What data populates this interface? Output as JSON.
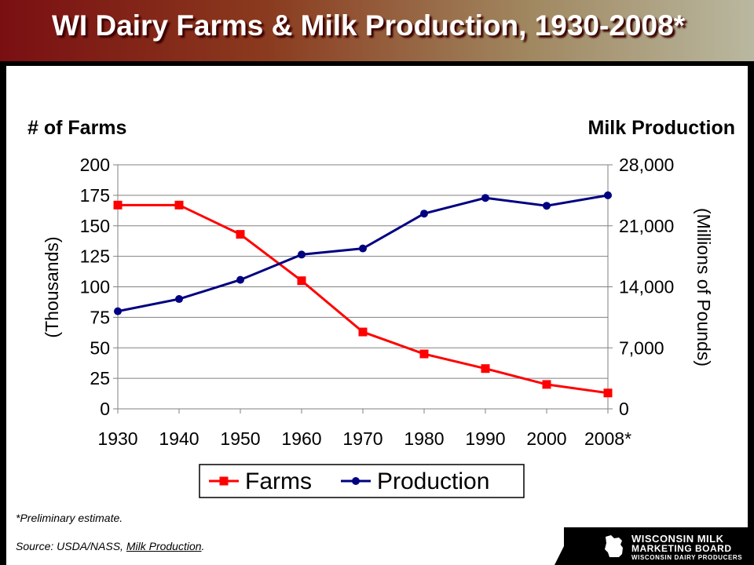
{
  "title": "WI Dairy Farms & Milk Production, 1930-2008*",
  "footnote": "*Preliminary estimate.",
  "source_prefix": "Source:  USDA/NASS, ",
  "source_link": "Milk Production",
  "source_suffix": ".",
  "logo": {
    "line1": "Wisconsin Milk",
    "line2": "Marketing Board",
    "line3": "Wisconsin Dairy Producers"
  },
  "colors": {
    "farms": "#ff0000",
    "production": "#000080",
    "grid": "#808080"
  },
  "chart_data": {
    "type": "line",
    "left_axis_header": "# of Farms",
    "right_axis_header": "Milk Production",
    "ylabel": "(Thousands)",
    "y2label": "(Millions of Pounds)",
    "categories": [
      "1930",
      "1940",
      "1950",
      "1960",
      "1970",
      "1980",
      "1990",
      "2000",
      "2008*"
    ],
    "ylim": [
      0,
      200
    ],
    "yticks": [
      "0",
      "25",
      "50",
      "75",
      "100",
      "125",
      "150",
      "175",
      "200"
    ],
    "y2lim": [
      0,
      28000
    ],
    "y2ticks": [
      "0",
      "7,000",
      "14,000",
      "21,000",
      "28,000"
    ],
    "grid": true,
    "legend_position": "bottom",
    "series": [
      {
        "name": "Farms",
        "axis": "left",
        "marker": "square",
        "values": [
          167,
          167,
          143,
          105,
          63,
          45,
          33,
          20,
          13
        ]
      },
      {
        "name": "Production",
        "axis": "right",
        "marker": "circle",
        "values": [
          11200,
          12600,
          14800,
          17700,
          18400,
          22400,
          24200,
          23300,
          24500
        ]
      }
    ]
  }
}
